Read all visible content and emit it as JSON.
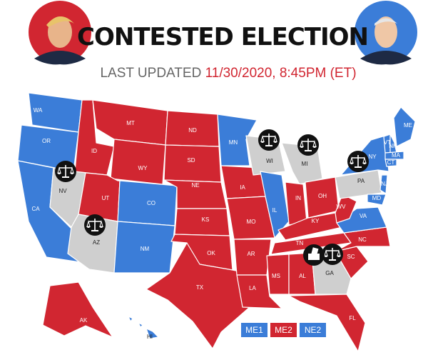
{
  "header": {
    "title": "CONTESTED ELECTION",
    "updated_label": "LAST UPDATED",
    "updated_time": "11/30/2020, 8:45PM (ET)"
  },
  "colors": {
    "updated_label": "#666666",
    "updated_time": "#d12631"
  },
  "states": [
    {
      "label": "WA",
      "color": "#3b7dd8"
    },
    {
      "label": "OR",
      "color": "#3b7dd8"
    },
    {
      "label": "CA",
      "color": "#3b7dd8"
    },
    {
      "label": "NV",
      "color": "#cfcfcf"
    },
    {
      "label": "ID",
      "color": "#d12631"
    },
    {
      "label": "MT",
      "color": "#d12631"
    },
    {
      "label": "WY",
      "color": "#d12631"
    },
    {
      "label": "UT",
      "color": "#d12631"
    },
    {
      "label": "AZ",
      "color": "#cfcfcf"
    },
    {
      "label": "CO",
      "color": "#3b7dd8"
    },
    {
      "label": "NM",
      "color": "#3b7dd8"
    },
    {
      "label": "ND",
      "color": "#d12631"
    },
    {
      "label": "SD",
      "color": "#d12631"
    },
    {
      "label": "NE",
      "color": "#d12631"
    },
    {
      "label": "KS",
      "color": "#d12631"
    },
    {
      "label": "OK",
      "color": "#d12631"
    },
    {
      "label": "TX",
      "color": "#d12631"
    },
    {
      "label": "MN",
      "color": "#3b7dd8"
    },
    {
      "label": "IA",
      "color": "#d12631"
    },
    {
      "label": "MO",
      "color": "#d12631"
    },
    {
      "label": "AR",
      "color": "#d12631"
    },
    {
      "label": "LA",
      "color": "#d12631"
    },
    {
      "label": "WI",
      "color": "#cfcfcf"
    },
    {
      "label": "IL",
      "color": "#3b7dd8"
    },
    {
      "label": "MI",
      "color": "#cfcfcf"
    },
    {
      "label": "IN",
      "color": "#d12631"
    },
    {
      "label": "OH",
      "color": "#d12631"
    },
    {
      "label": "KY",
      "color": "#d12631"
    },
    {
      "label": "TN",
      "color": "#d12631"
    },
    {
      "label": "MS",
      "color": "#d12631"
    },
    {
      "label": "AL",
      "color": "#d12631"
    },
    {
      "label": "GA",
      "color": "#cfcfcf"
    },
    {
      "label": "FL",
      "color": "#d12631"
    },
    {
      "label": "SC",
      "color": "#d12631"
    },
    {
      "label": "NC",
      "color": "#d12631"
    },
    {
      "label": "VA",
      "color": "#3b7dd8"
    },
    {
      "label": "WV",
      "color": "#d12631"
    },
    {
      "label": "PA",
      "color": "#cfcfcf"
    },
    {
      "label": "NY",
      "color": "#3b7dd8"
    },
    {
      "label": "ME",
      "color": "#3b7dd8"
    },
    {
      "label": "VT",
      "color": "#3b7dd8"
    },
    {
      "label": "NH",
      "color": "#3b7dd8"
    },
    {
      "label": "MA",
      "color": "#3b7dd8"
    },
    {
      "label": "CT",
      "color": "#3b7dd8"
    },
    {
      "label": "NJ",
      "color": "#3b7dd8"
    },
    {
      "label": "MD",
      "color": "#3b7dd8"
    },
    {
      "label": "AK",
      "color": "#d12631"
    },
    {
      "label": "HI",
      "color": "#3b7dd8"
    }
  ],
  "legend": [
    {
      "label": "ME1",
      "color": "#3b7dd8"
    },
    {
      "label": "ME2",
      "color": "#d12631"
    },
    {
      "label": "NE2",
      "color": "#3b7dd8"
    }
  ]
}
